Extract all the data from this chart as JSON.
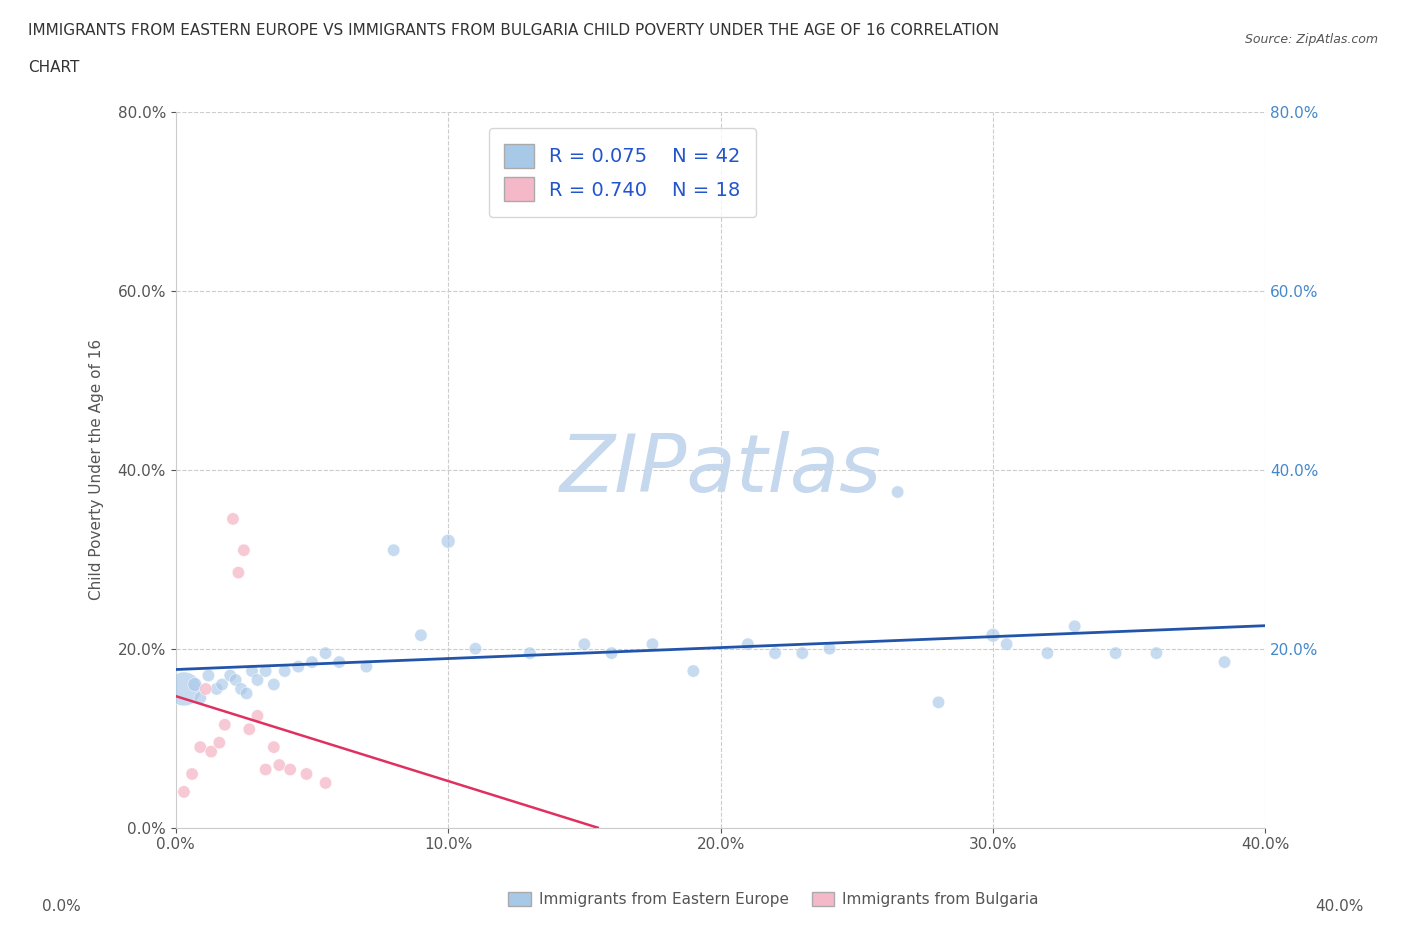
{
  "title_line1": "IMMIGRANTS FROM EASTERN EUROPE VS IMMIGRANTS FROM BULGARIA CHILD POVERTY UNDER THE AGE OF 16 CORRELATION",
  "title_line2": "CHART",
  "source": "Source: ZipAtlas.com",
  "xlabel_blue": "Immigrants from Eastern Europe",
  "xlabel_pink": "Immigrants from Bulgaria",
  "ylabel": "Child Poverty Under the Age of 16",
  "watermark": "ZIPatlas",
  "legend_blue_r": "R = 0.075",
  "legend_blue_n": "N = 42",
  "legend_pink_r": "R = 0.740",
  "legend_pink_n": "N = 18",
  "blue_color": "#a8c8e8",
  "pink_color": "#f4b8c8",
  "trend_blue_color": "#2255aa",
  "trend_pink_color": "#e03060",
  "xlim": [
    0.0,
    0.4
  ],
  "ylim": [
    0.0,
    0.8
  ],
  "xticks": [
    0.0,
    0.1,
    0.2,
    0.3,
    0.4
  ],
  "yticks": [
    0.0,
    0.2,
    0.4,
    0.6,
    0.8
  ],
  "blue_x": [
    0.003,
    0.007,
    0.009,
    0.012,
    0.015,
    0.017,
    0.02,
    0.022,
    0.024,
    0.026,
    0.028,
    0.03,
    0.033,
    0.036,
    0.04,
    0.045,
    0.05,
    0.055,
    0.06,
    0.07,
    0.08,
    0.09,
    0.1,
    0.11,
    0.13,
    0.15,
    0.16,
    0.175,
    0.19,
    0.21,
    0.22,
    0.23,
    0.24,
    0.265,
    0.28,
    0.3,
    0.305,
    0.32,
    0.33,
    0.345,
    0.36,
    0.385
  ],
  "blue_y": [
    0.155,
    0.16,
    0.145,
    0.17,
    0.155,
    0.16,
    0.17,
    0.165,
    0.155,
    0.15,
    0.175,
    0.165,
    0.175,
    0.16,
    0.175,
    0.18,
    0.185,
    0.195,
    0.185,
    0.18,
    0.31,
    0.215,
    0.32,
    0.2,
    0.195,
    0.205,
    0.195,
    0.205,
    0.175,
    0.205,
    0.195,
    0.195,
    0.2,
    0.375,
    0.14,
    0.215,
    0.205,
    0.195,
    0.225,
    0.195,
    0.195,
    0.185
  ],
  "blue_sizes": [
    600,
    100,
    80,
    80,
    80,
    80,
    80,
    80,
    80,
    80,
    80,
    80,
    80,
    80,
    80,
    80,
    80,
    80,
    80,
    80,
    80,
    80,
    100,
    80,
    80,
    80,
    80,
    80,
    80,
    80,
    80,
    80,
    80,
    80,
    80,
    100,
    80,
    80,
    80,
    80,
    80,
    80
  ],
  "pink_x": [
    0.003,
    0.006,
    0.009,
    0.011,
    0.013,
    0.016,
    0.018,
    0.021,
    0.023,
    0.025,
    0.027,
    0.03,
    0.033,
    0.036,
    0.038,
    0.042,
    0.048,
    0.055
  ],
  "pink_y": [
    0.04,
    0.06,
    0.09,
    0.155,
    0.085,
    0.095,
    0.115,
    0.345,
    0.285,
    0.31,
    0.11,
    0.125,
    0.065,
    0.09,
    0.07,
    0.065,
    0.06,
    0.05
  ],
  "pink_sizes": [
    80,
    80,
    80,
    80,
    80,
    80,
    80,
    80,
    80,
    80,
    80,
    80,
    80,
    80,
    80,
    80,
    80,
    80
  ],
  "bg_color": "#ffffff",
  "grid_color": "#cccccc",
  "title_color": "#333333",
  "left_tick_color": "#555555",
  "right_tick_color": "#4488cc",
  "watermark_color": "#c5d8ee",
  "legend_text_color": "#2255cc"
}
